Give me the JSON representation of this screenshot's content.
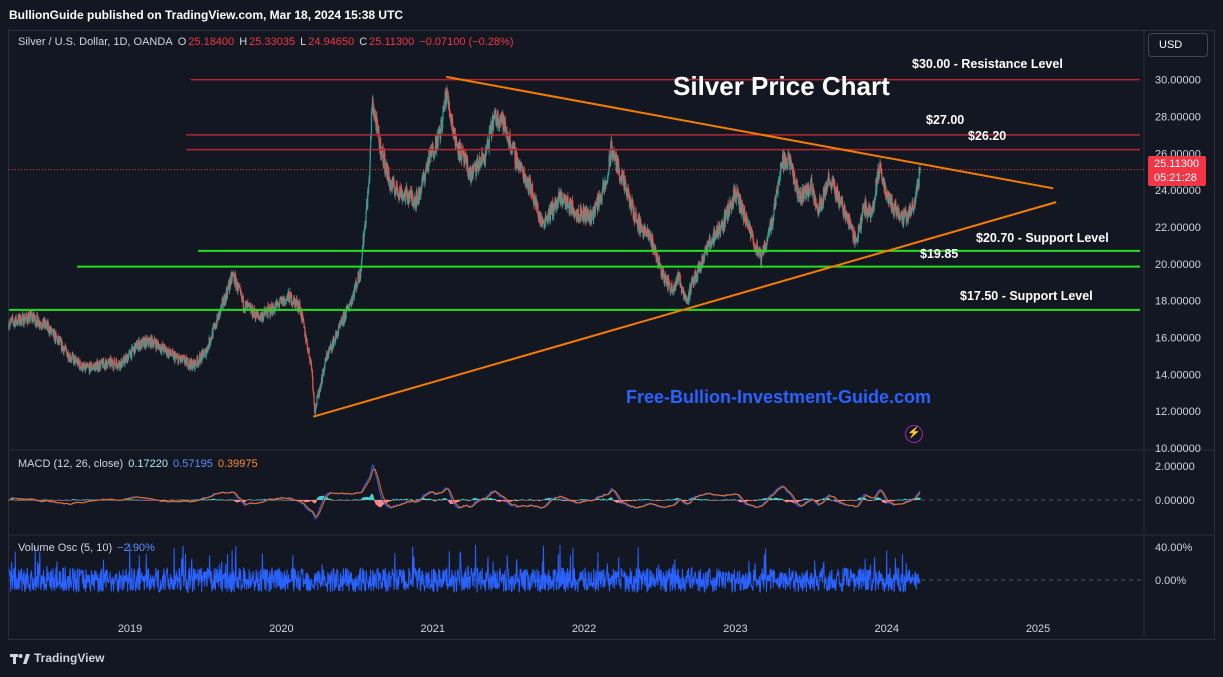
{
  "header": {
    "published": "BullionGuide published on TradingView.com, Mar 18, 2024 15:38 UTC"
  },
  "legend": {
    "symbol": "Silver / U.S. Dollar, 1D, OANDA",
    "o_label": "O",
    "o_value": "25.18400",
    "h_label": "H",
    "h_value": "25.33035",
    "l_label": "L",
    "l_value": "24.94650",
    "c_label": "C",
    "c_value": "25.11300",
    "change": "−0.07100 (−0.28%)"
  },
  "currency_button": "USD",
  "last_price": {
    "value": "25.11300",
    "countdown": "05:21:28"
  },
  "macd_legend": {
    "name": "MACD (12, 26, close)",
    "v1": "0.17220",
    "v2": "0.57195",
    "v3": "0.39975"
  },
  "vol_legend": {
    "name": "Volume Osc (5, 10)",
    "v1": "−2.90%"
  },
  "footer": {
    "brand": "TradingView"
  },
  "colors": {
    "up": "#26a69a",
    "down": "#ef5350",
    "resistance": "#b22833",
    "support": "#22e01f",
    "trend": "#f57c00",
    "macd": "#2962ff",
    "signal": "#ff6d00",
    "volume_osc": "#2962ff",
    "watermark": "#2962ff"
  },
  "chart_data": {
    "type": "candlestick",
    "title": "Silver Price Chart",
    "watermark": "Free-Bullion-Investment-Guide.com",
    "x_ticks": [
      "2019",
      "2020",
      "2021",
      "2022",
      "2023",
      "2024",
      "2025"
    ],
    "y_ticks": [
      "30.00000",
      "28.00000",
      "26.00000",
      "24.00000",
      "22.00000",
      "20.00000",
      "18.00000",
      "16.00000",
      "14.00000",
      "12.00000",
      "10.00000"
    ],
    "ylim": [
      10,
      31.5
    ],
    "xlim": [
      2018.2,
      2025.7
    ],
    "levels": [
      {
        "price": 30.0,
        "label": "$30.00 - Resistance Level",
        "kind": "resistance",
        "x_from": 2019.4
      },
      {
        "price": 27.0,
        "label": "$27.00",
        "kind": "resistance",
        "x_from": 2019.37
      },
      {
        "price": 26.2,
        "label": "$26.20",
        "kind": "resistance",
        "x_from": 2019.37
      },
      {
        "price": 20.7,
        "label": "$20.70 - Support Level",
        "kind": "support",
        "x_from": 2019.45
      },
      {
        "price": 19.85,
        "label": "$19.85",
        "kind": "support",
        "x_from": 2018.65
      },
      {
        "price": 17.5,
        "label": "$17.50 - Support Level",
        "kind": "support",
        "x_from": 2018.2
      }
    ],
    "trendlines": [
      {
        "x1": 2021.09,
        "y1": 30.15,
        "x2": 2025.1,
        "y2": 24.1
      },
      {
        "x1": 2020.21,
        "y1": 11.7,
        "x2": 2025.12,
        "y2": 23.35
      }
    ],
    "price_path": [
      [
        2018.2,
        16.8
      ],
      [
        2018.35,
        17.1
      ],
      [
        2018.45,
        16.6
      ],
      [
        2018.6,
        15.0
      ],
      [
        2018.7,
        14.3
      ],
      [
        2018.85,
        14.6
      ],
      [
        2018.95,
        14.6
      ],
      [
        2019.05,
        15.6
      ],
      [
        2019.15,
        15.8
      ],
      [
        2019.3,
        14.9
      ],
      [
        2019.42,
        14.5
      ],
      [
        2019.5,
        15.2
      ],
      [
        2019.6,
        17.5
      ],
      [
        2019.68,
        19.4
      ],
      [
        2019.75,
        17.8
      ],
      [
        2019.85,
        17.1
      ],
      [
        2019.95,
        17.6
      ],
      [
        2020.05,
        18.2
      ],
      [
        2020.12,
        17.7
      ],
      [
        2020.2,
        14.4
      ],
      [
        2020.22,
        12.0
      ],
      [
        2020.3,
        15.0
      ],
      [
        2020.38,
        16.4
      ],
      [
        2020.45,
        17.8
      ],
      [
        2020.52,
        19.5
      ],
      [
        2020.58,
        24.5
      ],
      [
        2020.6,
        28.8
      ],
      [
        2020.65,
        26.5
      ],
      [
        2020.72,
        24.3
      ],
      [
        2020.8,
        23.8
      ],
      [
        2020.9,
        23.5
      ],
      [
        2020.98,
        25.8
      ],
      [
        2021.05,
        27.1
      ],
      [
        2021.09,
        29.3
      ],
      [
        2021.15,
        26.7
      ],
      [
        2021.25,
        24.8
      ],
      [
        2021.35,
        25.9
      ],
      [
        2021.4,
        27.8
      ],
      [
        2021.45,
        28.0
      ],
      [
        2021.55,
        25.7
      ],
      [
        2021.65,
        24.1
      ],
      [
        2021.72,
        22.2
      ],
      [
        2021.85,
        23.6
      ],
      [
        2021.95,
        22.8
      ],
      [
        2022.05,
        22.6
      ],
      [
        2022.15,
        24.4
      ],
      [
        2022.18,
        26.3
      ],
      [
        2022.25,
        24.6
      ],
      [
        2022.35,
        22.3
      ],
      [
        2022.45,
        21.2
      ],
      [
        2022.52,
        19.4
      ],
      [
        2022.58,
        18.6
      ],
      [
        2022.62,
        19.3
      ],
      [
        2022.68,
        18.0
      ],
      [
        2022.72,
        19.0
      ],
      [
        2022.8,
        20.6
      ],
      [
        2022.85,
        21.4
      ],
      [
        2022.92,
        22.2
      ],
      [
        2023.0,
        23.9
      ],
      [
        2023.08,
        22.1
      ],
      [
        2023.17,
        20.2
      ],
      [
        2023.25,
        22.6
      ],
      [
        2023.3,
        25.4
      ],
      [
        2023.35,
        25.8
      ],
      [
        2023.42,
        23.6
      ],
      [
        2023.5,
        24.2
      ],
      [
        2023.55,
        23.0
      ],
      [
        2023.62,
        24.6
      ],
      [
        2023.7,
        23.3
      ],
      [
        2023.75,
        22.3
      ],
      [
        2023.8,
        21.2
      ],
      [
        2023.85,
        23.1
      ],
      [
        2023.9,
        22.7
      ],
      [
        2023.95,
        25.2
      ],
      [
        2024.0,
        23.8
      ],
      [
        2024.05,
        23.0
      ],
      [
        2024.12,
        22.5
      ],
      [
        2024.18,
        23.1
      ],
      [
        2024.22,
        25.1
      ]
    ],
    "macd_ticks": [
      "2.00000",
      "0.00000"
    ],
    "vol_ticks": [
      "40.00%",
      "0.00%"
    ]
  }
}
